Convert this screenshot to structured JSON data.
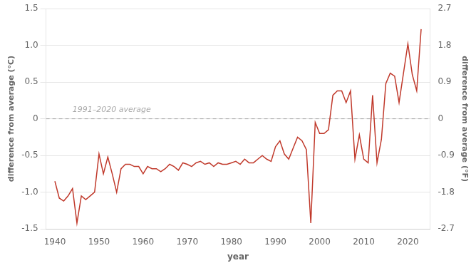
{
  "chart_data": {
    "type": "line",
    "x": [
      1940,
      1941,
      1942,
      1943,
      1944,
      1945,
      1946,
      1947,
      1948,
      1949,
      1950,
      1951,
      1952,
      1953,
      1954,
      1955,
      1956,
      1957,
      1958,
      1959,
      1960,
      1961,
      1962,
      1963,
      1964,
      1965,
      1966,
      1967,
      1968,
      1969,
      1970,
      1971,
      1972,
      1973,
      1974,
      1975,
      1976,
      1977,
      1978,
      1979,
      1980,
      1981,
      1982,
      1983,
      1984,
      1985,
      1986,
      1987,
      1988,
      1989,
      1990,
      1991,
      1992,
      1993,
      1994,
      1995,
      1996,
      1997,
      1998,
      1999,
      2000,
      2001,
      2002,
      2003,
      2004,
      2005,
      2006,
      2007,
      2008,
      2009,
      2010,
      2011,
      2012,
      2013,
      2014,
      2015,
      2016,
      2017,
      2018,
      2019,
      2020,
      2021,
      2022,
      2023
    ],
    "values": [
      -0.85,
      -1.08,
      -1.12,
      -1.05,
      -0.95,
      -1.42,
      -1.05,
      -1.1,
      -1.05,
      -1.0,
      -0.48,
      -0.75,
      -0.52,
      -0.75,
      -1.0,
      -0.68,
      -0.62,
      -0.62,
      -0.65,
      -0.65,
      -0.75,
      -0.65,
      -0.68,
      -0.68,
      -0.72,
      -0.68,
      -0.62,
      -0.65,
      -0.7,
      -0.6,
      -0.62,
      -0.65,
      -0.6,
      -0.58,
      -0.62,
      -0.6,
      -0.65,
      -0.6,
      -0.62,
      -0.62,
      -0.6,
      -0.58,
      -0.62,
      -0.55,
      -0.6,
      -0.6,
      -0.55,
      -0.5,
      -0.55,
      -0.58,
      -0.38,
      -0.3,
      -0.48,
      -0.55,
      -0.4,
      -0.25,
      -0.3,
      -0.42,
      -1.42,
      -0.05,
      -0.2,
      -0.2,
      -0.15,
      0.32,
      0.38,
      0.38,
      0.22,
      0.38,
      -0.55,
      -0.22,
      -0.55,
      -0.6,
      0.32,
      -0.6,
      -0.28,
      0.48,
      0.62,
      0.58,
      0.22,
      0.62,
      1.02,
      0.6,
      0.38,
      1.22
    ],
    "color": "#c0392b",
    "xlabel": "year",
    "ylabel": "difference from average (°C)",
    "y2label": "difference from average (°F)",
    "xlim": [
      1938,
      2025
    ],
    "xticks": [
      1940,
      1950,
      1960,
      1970,
      1980,
      1990,
      2000,
      2010,
      2020
    ],
    "ylim": [
      -1.5,
      1.5
    ],
    "yticks": [
      -1.5,
      {
        "value": -1.0,
        "label": "-1.0"
      },
      -0.5,
      0,
      0.5,
      {
        "value": 1.0,
        "label": "1.0"
      },
      1.5
    ],
    "y2lim": [
      -2.7,
      2.7
    ],
    "y2ticks": [
      -2.7,
      -1.8,
      -0.9,
      0,
      0.9,
      1.8,
      2.7
    ],
    "reference_lines": [
      {
        "y": 0,
        "color": "#aaaaaa",
        "line_style": "dashed"
      }
    ],
    "annotations": [
      {
        "text": "1991–2020 average",
        "x": 1944,
        "y": 0.07,
        "color": "#aaaaaa"
      }
    ],
    "grid": "y"
  }
}
